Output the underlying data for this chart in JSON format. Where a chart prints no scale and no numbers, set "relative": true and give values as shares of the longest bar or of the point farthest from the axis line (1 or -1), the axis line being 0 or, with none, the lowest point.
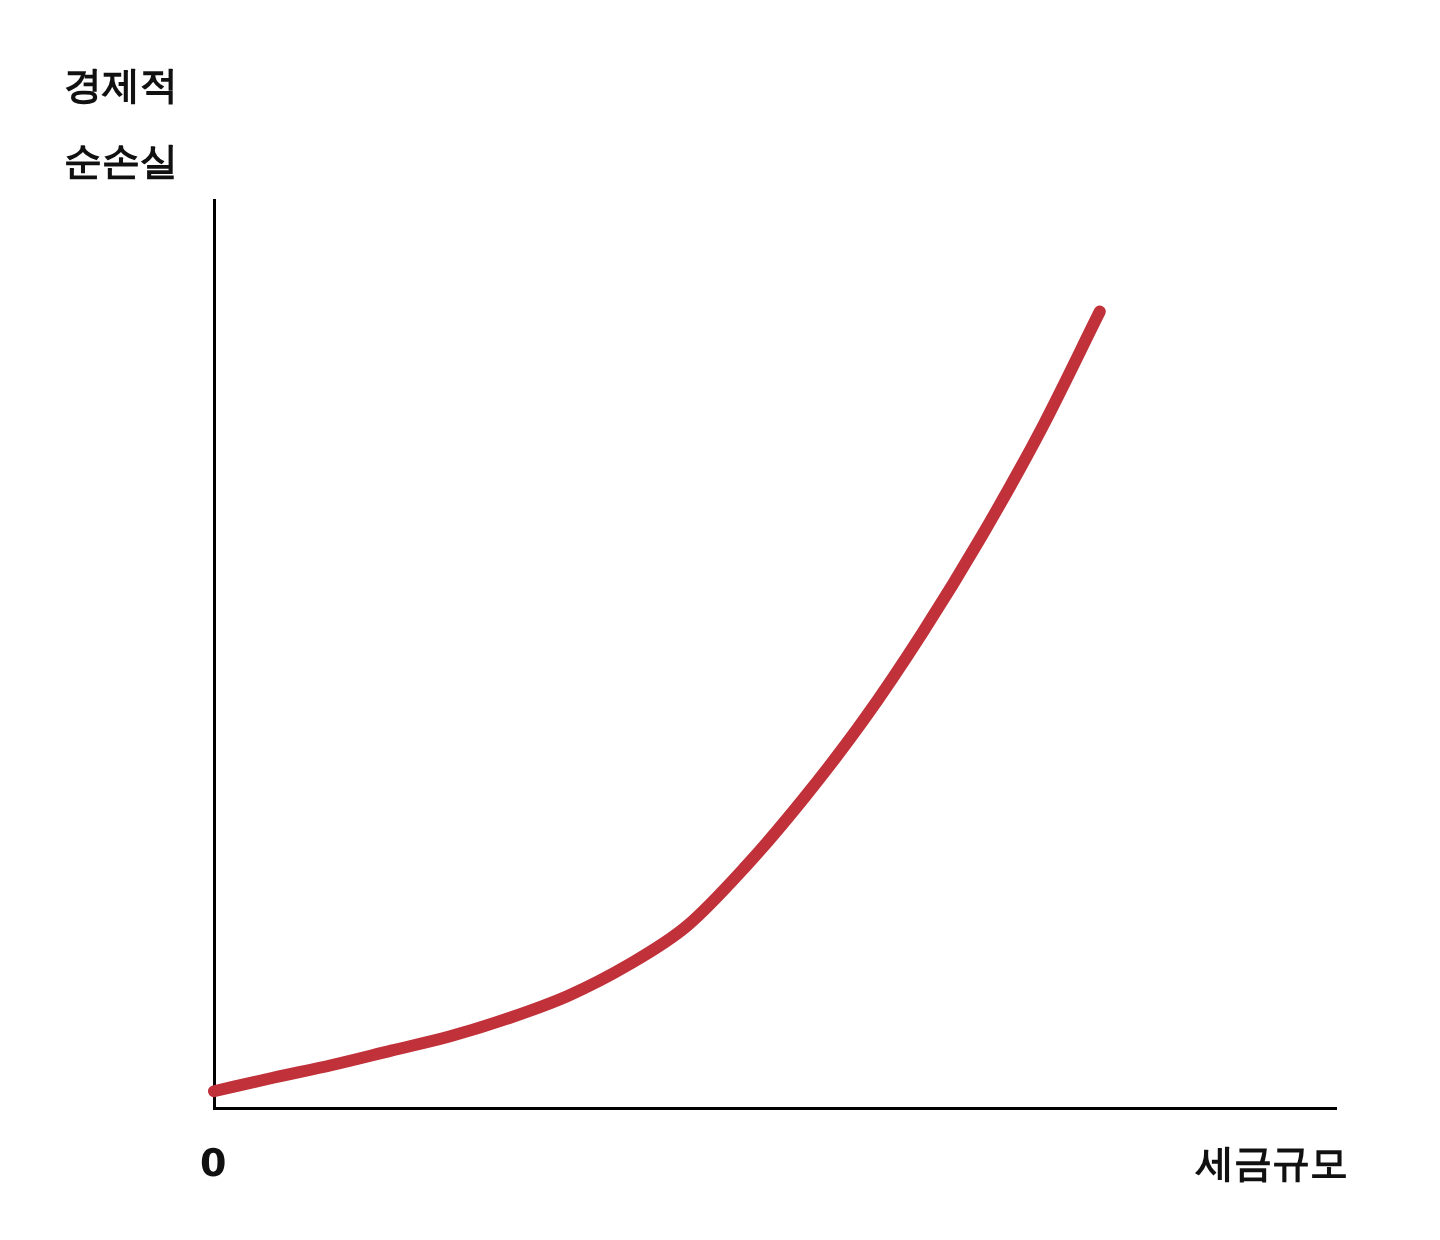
{
  "chart_data": {
    "type": "line",
    "relative": true,
    "ylabel": "경제적\n순손실",
    "xlabel": "세금규모",
    "annotations": [
      "0"
    ],
    "categories": [
      null,
      null,
      null,
      null,
      null,
      null,
      null,
      null,
      null,
      null,
      null,
      null,
      null,
      null,
      null,
      null,
      null,
      null,
      null,
      null
    ],
    "series": [
      {
        "color": "#c0313a",
        "values": [
          0.021,
          0.038,
          0.054,
          0.072,
          0.09,
          0.113,
          0.141,
          0.179,
          0.228,
          0.303,
          0.39,
          0.487,
          0.597,
          0.718,
          0.851,
          1,
          null,
          null,
          null,
          null
        ]
      }
    ],
    "grid": false,
    "legend": false,
    "marker": "none",
    "line_style": "solid"
  }
}
